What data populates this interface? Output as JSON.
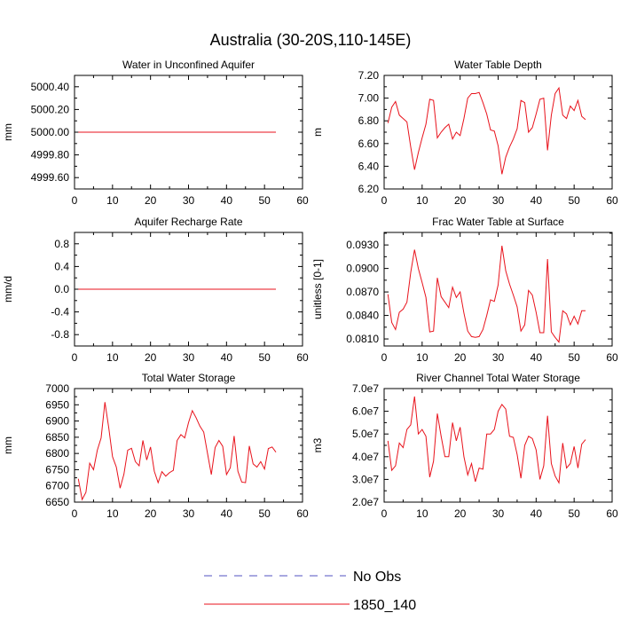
{
  "figure": {
    "title": "Australia (30-20S,110-145E)"
  },
  "legend": {
    "entries": [
      {
        "label": "No Obs",
        "color": "#5050c0",
        "style": "dashed"
      },
      {
        "label": "1850_140",
        "color": "#e8121b",
        "style": "solid"
      }
    ]
  },
  "chart_data": [
    {
      "type": "line",
      "title": "Water in Unconfined Aquifer",
      "ylabel": "mm",
      "xlim": [
        0,
        60
      ],
      "ylim": [
        4999.5,
        5000.5
      ],
      "xticks": [
        0,
        10,
        20,
        30,
        40,
        50,
        60
      ],
      "yticks": [
        4999.6,
        4999.8,
        5000.0,
        5000.2,
        5000.4
      ],
      "ytick_labels": [
        "4999.60",
        "4999.80",
        "5000.00",
        "5000.20",
        "5000.40"
      ],
      "series": [
        {
          "name": "1850_140",
          "color": "#e8121b",
          "x_start": 1,
          "values": [
            5000,
            5000,
            5000,
            5000,
            5000,
            5000,
            5000,
            5000,
            5000,
            5000,
            5000,
            5000,
            5000,
            5000,
            5000,
            5000,
            5000,
            5000,
            5000,
            5000,
            5000,
            5000,
            5000,
            5000,
            5000,
            5000,
            5000,
            5000,
            5000,
            5000,
            5000,
            5000,
            5000,
            5000,
            5000,
            5000,
            5000,
            5000,
            5000,
            5000,
            5000,
            5000,
            5000,
            5000,
            5000,
            5000,
            5000,
            5000,
            5000,
            5000,
            5000,
            5000,
            5000
          ]
        }
      ]
    },
    {
      "type": "line",
      "title": "Water Table Depth",
      "ylabel": "m",
      "xlim": [
        0,
        60
      ],
      "ylim": [
        6.2,
        7.2
      ],
      "xticks": [
        0,
        10,
        20,
        30,
        40,
        50,
        60
      ],
      "yticks": [
        6.2,
        6.4,
        6.6,
        6.8,
        7.0,
        7.2
      ],
      "ytick_labels": [
        "6.20",
        "6.40",
        "6.60",
        "6.80",
        "7.00",
        "7.20"
      ],
      "series": [
        {
          "name": "1850_140",
          "color": "#e8121b",
          "x_start": 1,
          "values": [
            6.78,
            6.92,
            6.97,
            6.85,
            6.82,
            6.79,
            6.57,
            6.37,
            6.52,
            6.65,
            6.77,
            6.99,
            6.98,
            6.65,
            6.7,
            6.74,
            6.77,
            6.64,
            6.7,
            6.67,
            6.82,
            7.0,
            7.04,
            7.04,
            7.05,
            6.96,
            6.86,
            6.72,
            6.71,
            6.58,
            6.33,
            6.48,
            6.57,
            6.64,
            6.73,
            6.98,
            6.96,
            6.7,
            6.74,
            6.86,
            6.99,
            7.0,
            6.54,
            6.85,
            7.04,
            7.09,
            6.85,
            6.82,
            6.93,
            6.89,
            6.98,
            6.84,
            6.81
          ]
        }
      ]
    },
    {
      "type": "line",
      "title": "Aquifer Recharge Rate",
      "ylabel": "mm/d",
      "xlim": [
        0,
        60
      ],
      "ylim": [
        -1,
        1
      ],
      "xticks": [
        0,
        10,
        20,
        30,
        40,
        50,
        60
      ],
      "yticks": [
        -0.8,
        -0.4,
        0.0,
        0.4,
        0.8
      ],
      "ytick_labels": [
        "-0.8",
        "-0.4",
        "0.0",
        "0.4",
        "0.8"
      ],
      "series": [
        {
          "name": "1850_140",
          "color": "#e8121b",
          "x_start": 1,
          "values": [
            0,
            0,
            0,
            0,
            0,
            0,
            0,
            0,
            0,
            0,
            0,
            0,
            0,
            0,
            0,
            0,
            0,
            0,
            0,
            0,
            0,
            0,
            0,
            0,
            0,
            0,
            0,
            0,
            0,
            0,
            0,
            0,
            0,
            0,
            0,
            0,
            0,
            0,
            0,
            0,
            0,
            0,
            0,
            0,
            0,
            0,
            0,
            0,
            0,
            0,
            0,
            0,
            0
          ]
        }
      ]
    },
    {
      "type": "line",
      "title": "Frac Water Table at Surface",
      "ylabel": "unitless [0-1]",
      "xlim": [
        0,
        60
      ],
      "ylim": [
        0.0801,
        0.0946
      ],
      "xticks": [
        0,
        10,
        20,
        30,
        40,
        50,
        60
      ],
      "yticks": [
        0.081,
        0.084,
        0.087,
        0.09,
        0.093
      ],
      "ytick_labels": [
        "0.0810",
        "0.0840",
        "0.0870",
        "0.0900",
        "0.0930"
      ],
      "series": [
        {
          "name": "1850_140",
          "color": "#e8121b",
          "x_start": 1,
          "values": [
            0.0867,
            0.0831,
            0.0822,
            0.0844,
            0.0848,
            0.0857,
            0.0895,
            0.0924,
            0.09,
            0.0882,
            0.0863,
            0.0819,
            0.082,
            0.0888,
            0.0864,
            0.0857,
            0.085,
            0.0876,
            0.0863,
            0.087,
            0.0843,
            0.082,
            0.0813,
            0.0812,
            0.0813,
            0.0822,
            0.084,
            0.086,
            0.0858,
            0.0879,
            0.0929,
            0.0897,
            0.088,
            0.0866,
            0.0851,
            0.082,
            0.0828,
            0.0872,
            0.0866,
            0.0844,
            0.0818,
            0.0818,
            0.0912,
            0.0819,
            0.0812,
            0.0806,
            0.0846,
            0.0842,
            0.0828,
            0.0839,
            0.0829,
            0.0846,
            0.0846
          ]
        }
      ]
    },
    {
      "type": "line",
      "title": "Total Water Storage",
      "ylabel": "mm",
      "xlim": [
        0,
        60
      ],
      "ylim": [
        6650,
        7000
      ],
      "xticks": [
        0,
        10,
        20,
        30,
        40,
        50,
        60
      ],
      "yticks": [
        6650,
        6700,
        6750,
        6800,
        6850,
        6900,
        6950,
        7000
      ],
      "ytick_labels": [
        "6650",
        "6700",
        "6750",
        "6800",
        "6850",
        "6900",
        "6950",
        "7000"
      ],
      "series": [
        {
          "name": "1850_140",
          "color": "#e8121b",
          "x_start": 1,
          "values": [
            6722,
            6658,
            6680,
            6770,
            6750,
            6810,
            6848,
            6958,
            6880,
            6790,
            6758,
            6693,
            6736,
            6810,
            6816,
            6775,
            6762,
            6840,
            6780,
            6820,
            6745,
            6710,
            6744,
            6730,
            6741,
            6748,
            6840,
            6858,
            6848,
            6895,
            6932,
            6910,
            6884,
            6866,
            6800,
            6735,
            6818,
            6840,
            6822,
            6735,
            6756,
            6854,
            6745,
            6712,
            6710,
            6823,
            6768,
            6758,
            6775,
            6752,
            6815,
            6820,
            6804
          ]
        }
      ]
    },
    {
      "type": "line",
      "title": "River Channel Total Water Storage",
      "ylabel": "m3",
      "xlim": [
        0,
        60
      ],
      "ylim": [
        20000000,
        70000000
      ],
      "xticks": [
        0,
        10,
        20,
        30,
        40,
        50,
        60
      ],
      "yticks": [
        20000000,
        30000000,
        40000000,
        50000000,
        60000000,
        70000000
      ],
      "ytick_labels": [
        "2.0e7",
        "3.0e7",
        "4.0e7",
        "5.0e7",
        "6.0e7",
        "7.0e7"
      ],
      "series": [
        {
          "name": "1850_140",
          "color": "#e8121b",
          "x_start": 1,
          "values": [
            47000000,
            34000000,
            36000000,
            46000000,
            44000000,
            52000000,
            54000000,
            66500000,
            50000000,
            52000000,
            49000000,
            31000000,
            38000000,
            59000000,
            49000000,
            40000000,
            40000000,
            55000000,
            47000000,
            53000000,
            40000000,
            32000000,
            37000000,
            29000000,
            35000000,
            34500000,
            50000000,
            50000000,
            52000000,
            60000000,
            63000000,
            61000000,
            49000000,
            48500000,
            41000000,
            30500000,
            45000000,
            49000000,
            48000000,
            43000000,
            30000000,
            36000000,
            58000000,
            37000000,
            31500000,
            28500000,
            46000000,
            35000000,
            37000000,
            44500000,
            35000000,
            45500000,
            47500000
          ]
        }
      ]
    }
  ]
}
